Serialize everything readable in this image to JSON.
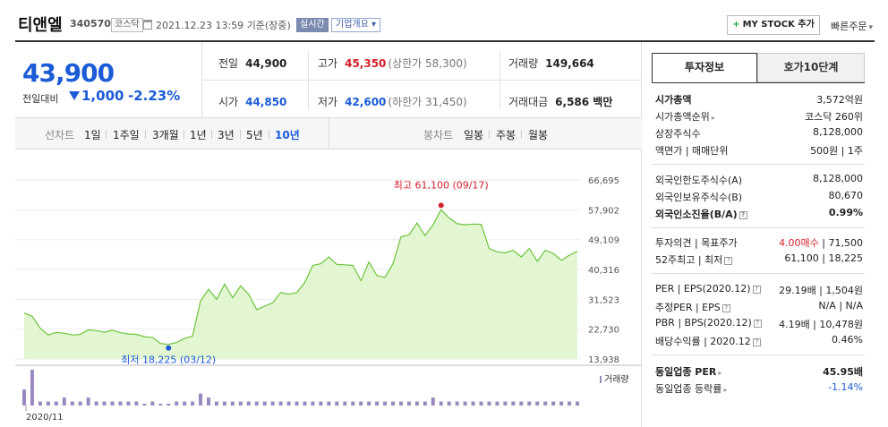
{
  "header": {
    "title": "티앤엘",
    "code": "340570",
    "market": "코스닥",
    "datetime": "2021.12.23 13:59",
    "basis": "기준(장중)",
    "realtime": "실시간",
    "company_info": "기업개요",
    "mystock": "MY STOCK 추가",
    "quick_order": "빠른주문"
  },
  "price": {
    "current": "43,900",
    "change_label": "전일대비",
    "change": "1,000",
    "change_rate": "-2.23%"
  },
  "quotes": {
    "prev_close_label": "전일",
    "prev_close": "44,900",
    "high_label": "고가",
    "high": "45,350",
    "upper_limit": "(상한가 58,300)",
    "volume_label": "거래량",
    "volume": "149,664",
    "open_label": "시가",
    "open": "44,850",
    "low_label": "저가",
    "low": "42,600",
    "lower_limit": "(하한가 31,450)",
    "value_label": "거래대금",
    "value": "6,586 백만"
  },
  "period_bar": {
    "line_label": "선차트",
    "periods": [
      "1일",
      "1주일",
      "3개월",
      "1년",
      "3년",
      "5년",
      "10년"
    ],
    "active": "10년",
    "candle_label": "봉차트",
    "candles": [
      "일봉",
      "주봉",
      "월봉"
    ]
  },
  "chart_data": {
    "type": "area",
    "y_ticks": [
      "66,695",
      "57,902",
      "49,109",
      "40,316",
      "31,523",
      "22,730",
      "13,938"
    ],
    "ylim": [
      13938,
      66695
    ],
    "x_start_label": "2020/11",
    "max_label": "최고 61,100 (09/17)",
    "min_label": "최저 18,225 (03/12)",
    "volume_label": "거래량",
    "values": [
      27500,
      26500,
      23000,
      21000,
      21800,
      21500,
      21000,
      21200,
      22500,
      22300,
      21800,
      22400,
      21700,
      21300,
      21200,
      20500,
      20300,
      18500,
      18225,
      18800,
      20000,
      20700,
      31000,
      34500,
      31500,
      36000,
      32000,
      35500,
      33000,
      28500,
      29500,
      30500,
      33500,
      33000,
      33500,
      36500,
      41500,
      42000,
      44000,
      41800,
      41700,
      41500,
      37000,
      42500,
      38500,
      38000,
      42000,
      50000,
      50500,
      54000,
      50300,
      53500,
      57900,
      55500,
      53800,
      53500,
      53700,
      53600,
      46500,
      45500,
      45200,
      46000,
      44000,
      46500,
      42700,
      46000,
      45000,
      43000,
      44500,
      45700
    ],
    "volumes": [
      4,
      9,
      1,
      1,
      1,
      2,
      1,
      1,
      2,
      1,
      1,
      1,
      1,
      1,
      1,
      0,
      1,
      0,
      0,
      1,
      1,
      1,
      3,
      2,
      1,
      1,
      1,
      1,
      1,
      1,
      1,
      1,
      1,
      1,
      1,
      1,
      1,
      1,
      1,
      1,
      1,
      1,
      1,
      1,
      1,
      1,
      1,
      1,
      1,
      1,
      1,
      2,
      1,
      1,
      1,
      1,
      1,
      1,
      1,
      1,
      1,
      1,
      1,
      1,
      1,
      1,
      1,
      1,
      1,
      1
    ],
    "colors": {
      "line": "#6cc43c",
      "fill": "#e3f6d2",
      "max": "#d3202a",
      "min": "#1b5bd6",
      "volume": "#9a88c0"
    }
  },
  "info": {
    "tab_active": "투자정보",
    "tab_other": "호가10단계",
    "rows1": [
      {
        "k": "시가총액",
        "v": "3,572억원",
        "bold_k": true
      },
      {
        "k": "시가총액순위",
        "v": "코스닥 260위",
        "caret": true
      },
      {
        "k": "상장주식수",
        "v": "8,128,000"
      },
      {
        "k": "액면가 | 매매단위",
        "v": "500원 | 1주"
      }
    ],
    "rows2": [
      {
        "k": "외국인한도주식수(A)",
        "v": "8,128,000"
      },
      {
        "k": "외국인보유주식수(B)",
        "v": "80,670"
      },
      {
        "k": "외국인소진율(B/A)",
        "v": "0.99%",
        "bold_k": true,
        "bold_v": true,
        "help": true
      }
    ],
    "opinion_label": "투자의견 | 목표주가",
    "opinion_value": "4.00매수",
    "target_value": "| 71,500",
    "week52_label": "52주최고 | 최저",
    "week52_value": "61,100 | 18,225",
    "rows4": [
      {
        "k": "PER | EPS(2020.12)",
        "v": "29.19배 | 1,504원",
        "help": true
      },
      {
        "k": "추정PER | EPS",
        "v": "N/A | N/A",
        "help": true
      },
      {
        "k": "PBR | BPS(2020.12)",
        "v": "4.19배 | 10,478원",
        "help": true
      },
      {
        "k": "배당수익률 | 2020.12",
        "v": "0.46%",
        "help": true
      }
    ],
    "sector_per_label": "동일업종 PER",
    "sector_per_value": "45.95배",
    "sector_rate_label": "동일업종 등락률",
    "sector_rate_value": "-1.14%"
  }
}
